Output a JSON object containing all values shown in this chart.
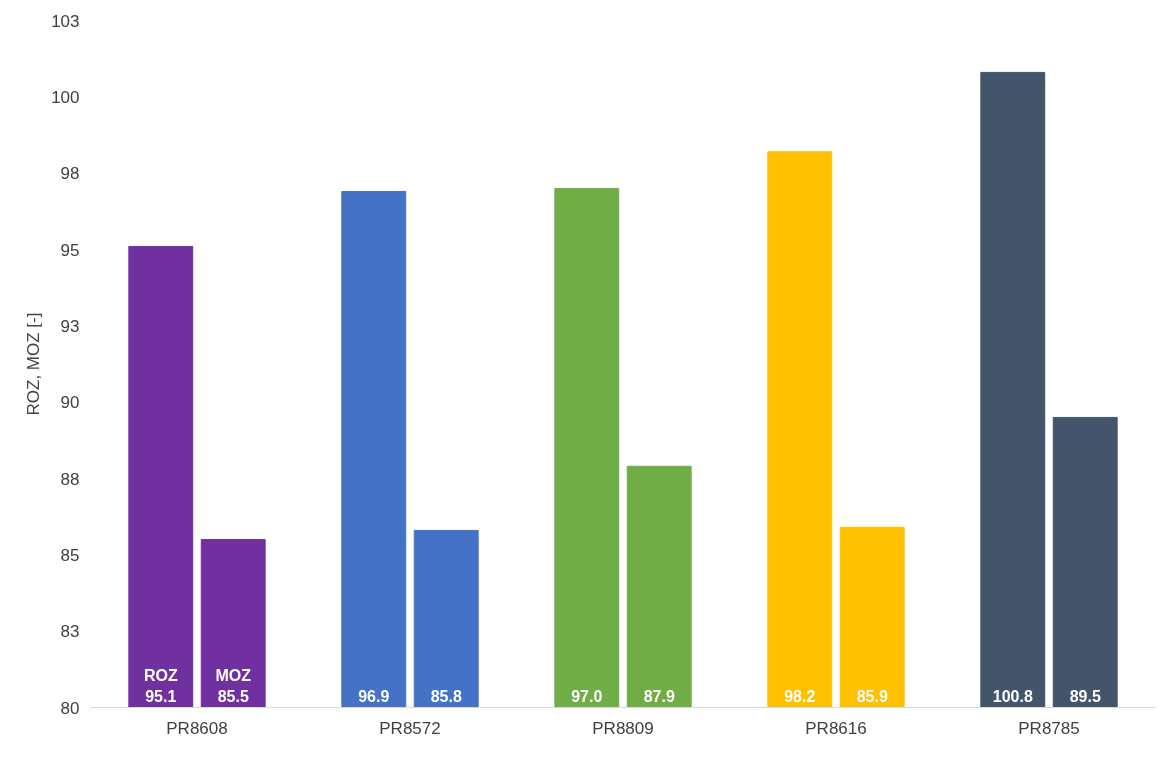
{
  "chart_data": {
    "type": "bar",
    "ylabel": "ROZ, MOZ [-]",
    "categories": [
      "PR8608",
      "PR8572",
      "PR8809",
      "PR8616",
      "PR8785"
    ],
    "series": [
      {
        "name": "ROZ",
        "colors": [
          "#7030a0",
          "#4472c4",
          "#70ad47",
          "#ffc000",
          "#44546a"
        ],
        "values": [
          95.1,
          96.9,
          97.0,
          98.2,
          100.8
        ],
        "value_labels": [
          "95.1",
          "96.9",
          "97.0",
          "98.2",
          "100.8"
        ]
      },
      {
        "name": "MOZ",
        "colors": [
          "#7030a0",
          "#4472c4",
          "#70ad47",
          "#ffc000",
          "#44546a"
        ],
        "values": [
          85.5,
          85.8,
          87.9,
          85.9,
          89.5
        ],
        "value_labels": [
          "85.5",
          "85.8",
          "87.9",
          "85.9",
          "89.5"
        ]
      }
    ],
    "ylim": [
      80,
      102.5
    ],
    "yticks": [
      80,
      {
        "value": 82.5,
        "label": "83"
      },
      85,
      {
        "value": 87.5,
        "label": "88"
      },
      90,
      {
        "value": 92.5,
        "label": "93"
      },
      95,
      {
        "value": 97.5,
        "label": "98"
      },
      100,
      {
        "value": 102.5,
        "label": "103"
      }
    ],
    "legend": false,
    "grid": false
  }
}
